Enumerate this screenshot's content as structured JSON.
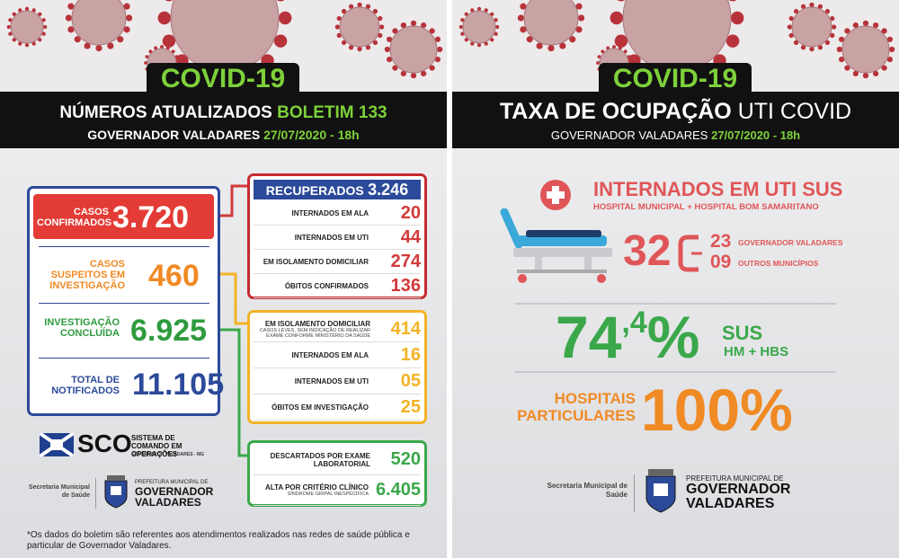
{
  "left": {
    "badge": "COVID-19",
    "title": "NÚMEROS ATUALIZADOS",
    "title_highlight": "BOLETIM 133",
    "city": "GOVERNADOR VALADARES",
    "date": "27/07/2020 - 18h",
    "summary": [
      {
        "label": "CASOS CONFIRMADOS",
        "value": "3.720"
      },
      {
        "label": "CASOS SUSPEITOS EM INVESTIGAÇÃO",
        "value": "460"
      },
      {
        "label": "INVESTIGAÇÃO CONCLUÍDA",
        "value": "6.925"
      },
      {
        "label": "TOTAL DE NOTIFICADOS",
        "value": "11.105"
      }
    ],
    "recovered": {
      "label": "RECUPERADOS",
      "value": "3.246",
      "rows": [
        {
          "label": "INTERNADOS EM ALA",
          "value": "20"
        },
        {
          "label": "INTERNADOS EM UTI",
          "value": "44"
        },
        {
          "label": "EM ISOLAMENTO DOMICILIAR",
          "value": "274"
        },
        {
          "label": "ÓBITOS CONFIRMADOS",
          "value": "136"
        }
      ]
    },
    "suspected": {
      "rows": [
        {
          "label": "EM ISOLAMENTO DOMICILIAR",
          "note": "CASOS LEVES, SEM INDICAÇÃO DE REALIZAR EXAME CONFORME MINISTÉRIO DA SAÚDE",
          "value": "414"
        },
        {
          "label": "INTERNADOS EM ALA",
          "value": "16"
        },
        {
          "label": "INTERNADOS EM UTI",
          "value": "05"
        },
        {
          "label": "ÓBITOS EM INVESTIGAÇÃO",
          "value": "25"
        }
      ]
    },
    "concluded": {
      "rows": [
        {
          "label": "DESCARTADOS POR EXAME LABORATORIAL",
          "value": "520"
        },
        {
          "label": "ALTA POR CRITÉRIO CLÍNICO",
          "note": "SÍNDROME GRIPAL INESPECÍFICA",
          "value": "6.405"
        }
      ]
    },
    "sco": {
      "acronym": "SCO",
      "name": "SISTEMA DE COMANDO EM OPERAÇÕES",
      "place": "GOVERNADOR VALADARES - MG"
    },
    "footer": {
      "secretaria": "Secretaria Municipal de Saúde",
      "prefeitura": "PREFEITURA MUNICIPAL DE",
      "city": "GOVERNADOR VALADARES"
    },
    "note": "*Os dados do boletim são referentes aos atendimentos realizados nas redes de saúde pública e particular de Governador Valadares."
  },
  "right": {
    "badge": "COVID-19",
    "title": "TAXA DE OCUPAÇÃO",
    "title_rest": "UTI COVID",
    "city": "GOVERNADOR VALADARES",
    "date": "27/07/2020 - 18h",
    "icu": {
      "title": "INTERNADOS EM UTI SUS",
      "subtitle": "HOSPITAL MUNICIPAL + HOSPITAL BOM SAMARITANO",
      "total": "32",
      "breakdown": [
        {
          "value": "23",
          "label": "GOVERNADOR VALADARES"
        },
        {
          "value": "09",
          "label": "OUTROS MUNICÍPIOS"
        }
      ]
    },
    "sus": {
      "whole": "74",
      "decimal": ",4",
      "unit": "%",
      "label": "SUS",
      "sublabel": "HM + HBS"
    },
    "private": {
      "label": "HOSPITAIS PARTICULARES",
      "value": "100%"
    },
    "footer": {
      "secretaria": "Secretaria Municipal de Saúde",
      "prefeitura": "PREFEITURA MUNICIPAL DE",
      "city": "GOVERNADOR VALADARES"
    }
  }
}
